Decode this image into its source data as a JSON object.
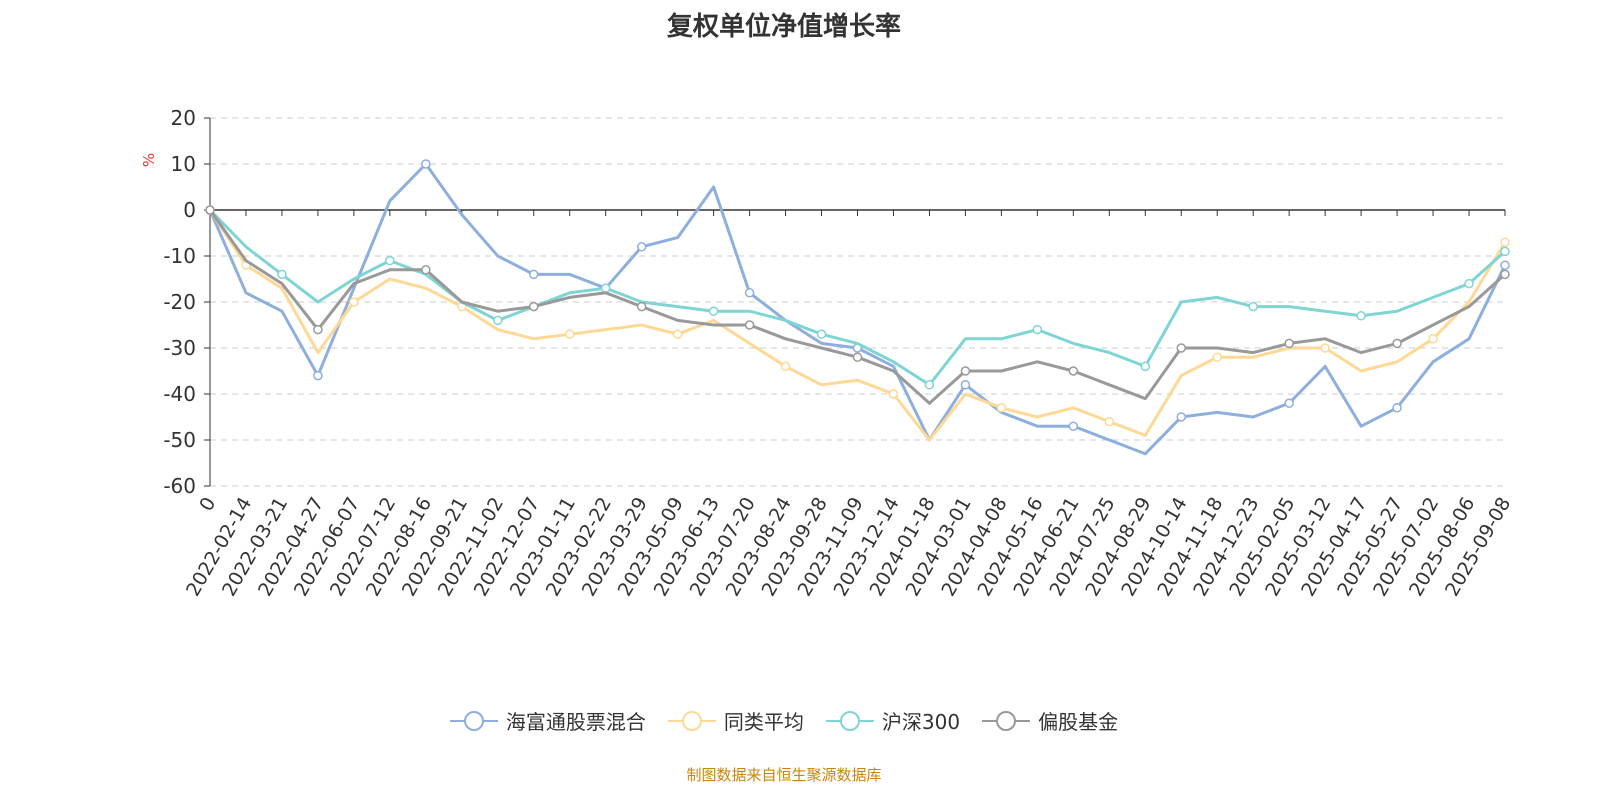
{
  "chart_data": {
    "type": "line",
    "title": "复权单位净值增长率",
    "ylabel": "%",
    "ylim": [
      -60,
      20
    ],
    "yticks": [
      20,
      10,
      0,
      -10,
      -20,
      -30,
      -40,
      -50,
      -60
    ],
    "grid": true,
    "legend_position": "bottom",
    "categories": [
      "0",
      "2022-02-14",
      "2022-03-21",
      "2022-04-27",
      "2022-06-07",
      "2022-07-12",
      "2022-08-16",
      "2022-09-21",
      "2022-11-02",
      "2022-12-07",
      "2023-01-11",
      "2023-02-22",
      "2023-03-29",
      "2023-05-09",
      "2023-06-13",
      "2023-07-20",
      "2023-08-24",
      "2023-09-28",
      "2023-11-09",
      "2023-12-14",
      "2024-01-18",
      "2024-03-01",
      "2024-04-08",
      "2024-05-16",
      "2024-06-21",
      "2024-07-25",
      "2024-08-29",
      "2024-10-14",
      "2024-11-18",
      "2024-12-23",
      "2025-02-05",
      "2025-03-12",
      "2025-04-17",
      "2025-05-27",
      "2025-07-02",
      "2025-08-06",
      "2025-09-08"
    ],
    "series": [
      {
        "name": "海富通股票混合",
        "color": "#8eaedd",
        "values": [
          0,
          -18,
          -22,
          -36,
          -17,
          2,
          10,
          -1,
          -10,
          -14,
          -14,
          -17,
          -8,
          -6,
          5,
          -18,
          -24,
          -29,
          -30,
          -34,
          -50,
          -38,
          -44,
          -47,
          -47,
          -50,
          -53,
          -45,
          -44,
          -45,
          -42,
          -34,
          -47,
          -43,
          -33,
          -28,
          -12
        ]
      },
      {
        "name": "同类平均",
        "color": "#fdd995",
        "values": [
          0,
          -12,
          -17,
          -31,
          -20,
          -15,
          -17,
          -21,
          -26,
          -28,
          -27,
          -26,
          -25,
          -27,
          -24,
          -29,
          -34,
          -38,
          -37,
          -40,
          -50,
          -40,
          -43,
          -45,
          -43,
          -46,
          -49,
          -36,
          -32,
          -32,
          -30,
          -30,
          -35,
          -33,
          -28,
          -20,
          -7
        ]
      },
      {
        "name": "沪深300",
        "color": "#7fd4d4",
        "values": [
          0,
          -8,
          -14,
          -20,
          -15,
          -11,
          -14,
          -20,
          -24,
          -21,
          -18,
          -17,
          -20,
          -21,
          -22,
          -22,
          -24,
          -27,
          -29,
          -33,
          -38,
          -28,
          -28,
          -26,
          -29,
          -31,
          -34,
          -20,
          -19,
          -21,
          -21,
          -22,
          -23,
          -22,
          -19,
          -16,
          -9
        ]
      },
      {
        "name": "偏股基金",
        "color": "#999999",
        "values": [
          0,
          -11,
          -16,
          -26,
          -16,
          -13,
          -13,
          -20,
          -22,
          -21,
          -19,
          -18,
          -21,
          -24,
          -25,
          -25,
          -28,
          -30,
          -32,
          -35,
          -42,
          -35,
          -35,
          -33,
          -35,
          -38,
          -41,
          -30,
          -30,
          -31,
          -29,
          -28,
          -31,
          -29,
          -25,
          -21,
          -14
        ]
      }
    ]
  },
  "source": "制图数据来自恒生聚源数据库"
}
